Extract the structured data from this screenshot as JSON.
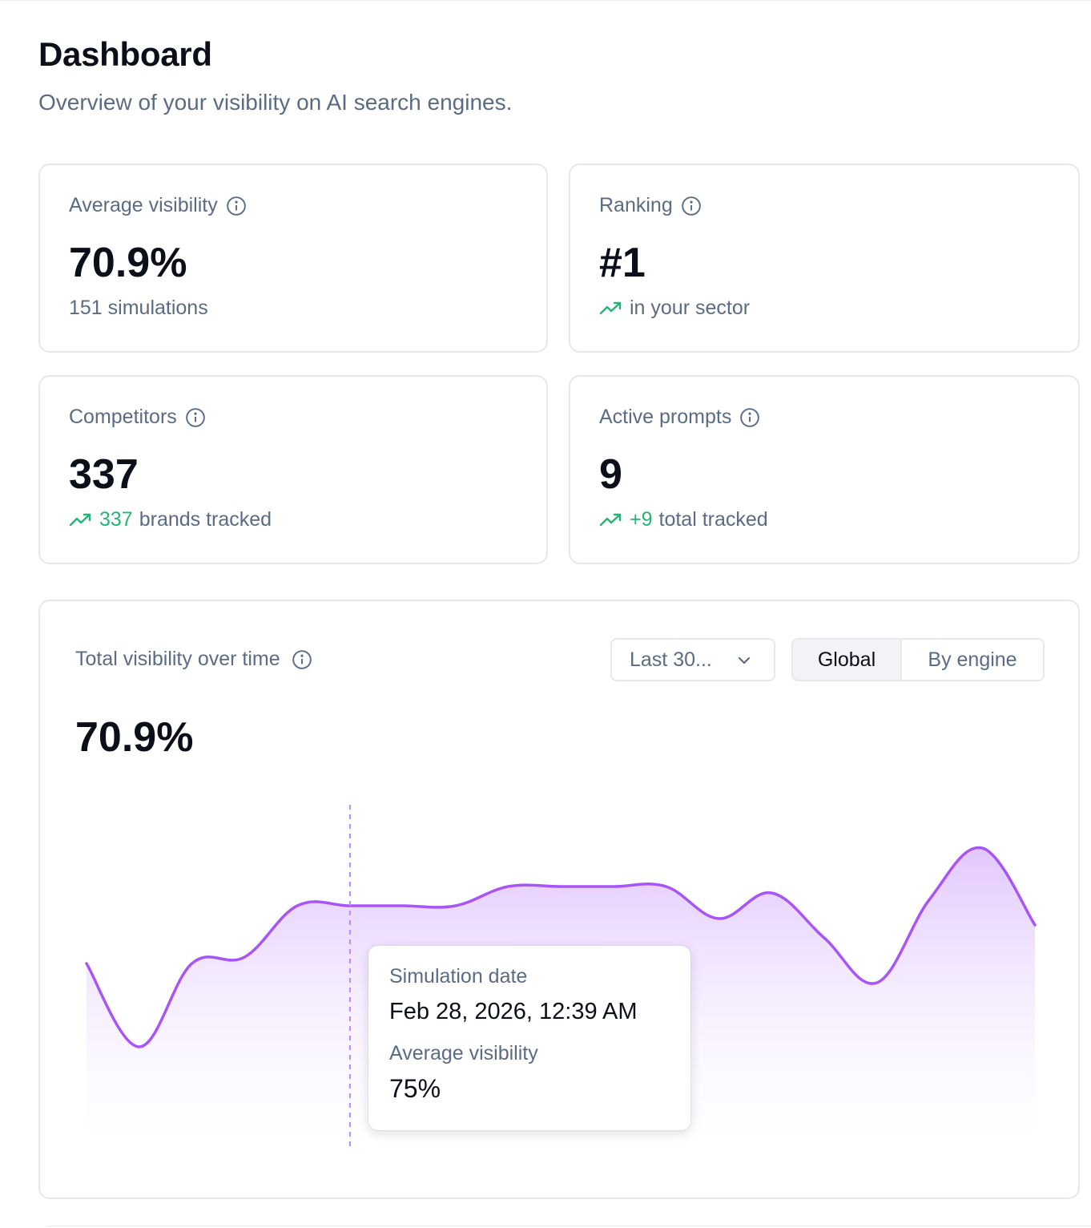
{
  "header": {
    "title": "Dashboard",
    "subtitle": "Overview of your visibility on AI search engines."
  },
  "stats": [
    {
      "label": "Average visibility",
      "value": "70.9%",
      "sub_highlight": "",
      "sub_text": "151 simulations",
      "trend": false
    },
    {
      "label": "Ranking",
      "value": "#1",
      "sub_highlight": "",
      "sub_text": "in your sector",
      "trend": true
    },
    {
      "label": "Competitors",
      "value": "337",
      "sub_highlight": "337",
      "sub_text": "brands tracked",
      "trend": true
    },
    {
      "label": "Active prompts",
      "value": "9",
      "sub_highlight": "+9",
      "sub_text": "total tracked",
      "trend": true
    }
  ],
  "chart_card": {
    "title": "Total visibility over time",
    "range_label": "Last 30...",
    "toggle": {
      "active": "Global",
      "inactive": "By engine"
    },
    "headline_value": "70.9%"
  },
  "tooltip": {
    "date_label": "Simulation date",
    "date_value": "Feb 28, 2026, 12:39 AM",
    "metric_label": "Average visibility",
    "metric_value": "75%"
  },
  "icons": {
    "info": "info-circle-icon",
    "trend": "trending-up-icon",
    "chevron": "chevron-down-icon"
  },
  "colors": {
    "accent": "#a855f7",
    "trend_green": "#22b573",
    "muted_text": "#5b6b85"
  },
  "chart_data": {
    "type": "area",
    "title": "Total visibility over time",
    "xlabel": "",
    "ylabel": "",
    "x_unit": "simulation",
    "points": [
      {
        "x": 1,
        "y": 66
      },
      {
        "x": 2,
        "y": 53
      },
      {
        "x": 3,
        "y": 66
      },
      {
        "x": 4,
        "y": 67
      },
      {
        "x": 5,
        "y": 75
      },
      {
        "x": 6,
        "y": 75
      },
      {
        "x": 7,
        "y": 75
      },
      {
        "x": 8,
        "y": 75
      },
      {
        "x": 9,
        "y": 78
      },
      {
        "x": 10,
        "y": 78
      },
      {
        "x": 11,
        "y": 78
      },
      {
        "x": 12,
        "y": 78
      },
      {
        "x": 13,
        "y": 73
      },
      {
        "x": 14,
        "y": 77
      },
      {
        "x": 15,
        "y": 70
      },
      {
        "x": 16,
        "y": 63
      },
      {
        "x": 17,
        "y": 76
      },
      {
        "x": 18,
        "y": 84
      },
      {
        "x": 19,
        "y": 72
      }
    ],
    "highlighted_x": 6,
    "highlighted_label": "Feb 28, 2026, 12:39 AM",
    "highlighted_y": 75,
    "grid": false,
    "legend": "none",
    "ylim": [
      0,
      100
    ]
  }
}
